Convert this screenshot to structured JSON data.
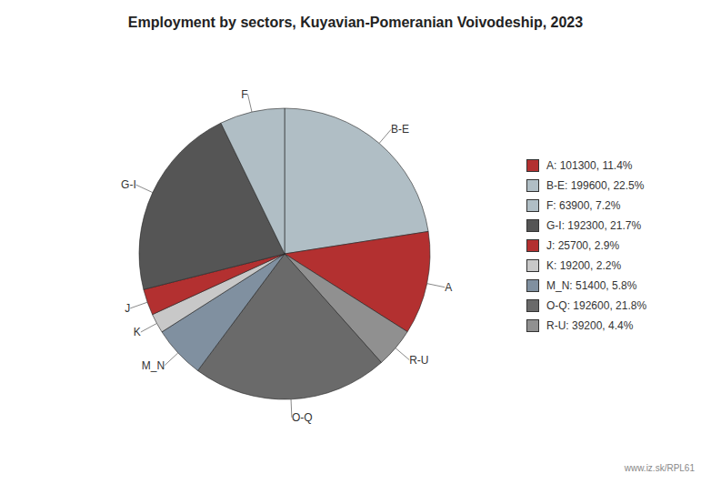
{
  "chart_data": {
    "type": "pie",
    "title": "Employment by sectors, Kuyavian-Pomeranian Voivodeship, 2023",
    "categories": [
      "B-E",
      "A",
      "R-U",
      "O-Q",
      "M_N",
      "K",
      "J",
      "G-I",
      "F"
    ],
    "values": [
      199600,
      101300,
      39200,
      192600,
      51400,
      19200,
      25700,
      192300,
      63900
    ],
    "colors": [
      "#b0bec5",
      "#b33030",
      "#909090",
      "#6a6a6a",
      "#8090a0",
      "#c8c8c8",
      "#b33030",
      "#555555",
      "#b0bec5"
    ],
    "legend": "right",
    "legend_entries": [
      {
        "label": "A: 101300, 11.4%",
        "color": "#b33030"
      },
      {
        "label": "B-E: 199600, 22.5%",
        "color": "#b0bec5"
      },
      {
        "label": "F: 63900, 7.2%",
        "color": "#b0bec5"
      },
      {
        "label": "G-I: 192300, 21.7%",
        "color": "#555555"
      },
      {
        "label": "J: 25700, 2.9%",
        "color": "#b33030"
      },
      {
        "label": "K: 19200, 2.2%",
        "color": "#c8c8c8"
      },
      {
        "label": "M_N: 51400, 5.8%",
        "color": "#8090a0"
      },
      {
        "label": "O-Q: 192600, 21.8%",
        "color": "#6a6a6a"
      },
      {
        "label": "R-U: 39200, 4.4%",
        "color": "#909090"
      }
    ],
    "watermark": "www.iz.sk/RPL61"
  }
}
